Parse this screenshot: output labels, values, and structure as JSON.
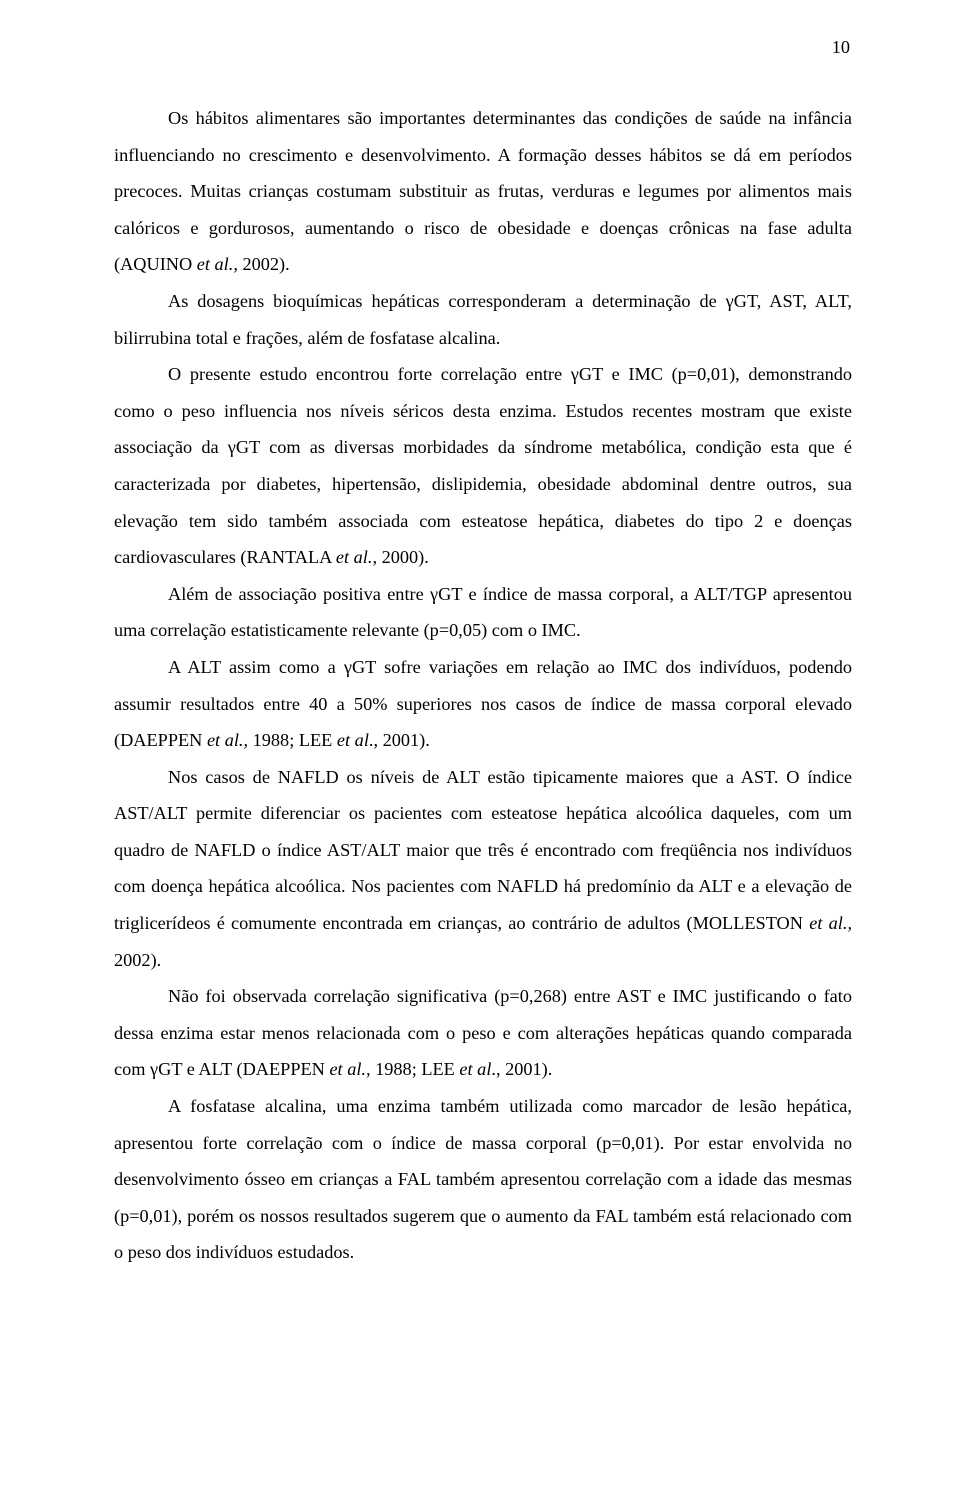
{
  "page_number": "10",
  "typography": {
    "font_family": "Times New Roman",
    "body_fontsize_pt": 14,
    "line_spacing": 2.0,
    "text_color": "#000000",
    "background_color": "#ffffff"
  },
  "paragraphs": [
    {
      "runs": [
        {
          "text": "Os hábitos alimentares são importantes determinantes das condições de saúde na infância influenciando no crescimento e desenvolvimento. A formação desses hábitos se dá em períodos precoces. Muitas crianças costumam substituir as frutas, verduras e legumes por alimentos mais calóricos e gordurosos, aumentando o risco de obesidade e doenças crônicas na fase adulta (AQUINO "
        },
        {
          "text": "et al.,",
          "italic": true
        },
        {
          "text": " 2002)."
        }
      ]
    },
    {
      "runs": [
        {
          "text": "As dosagens bioquímicas hepáticas corresponderam a determinação de γGT, AST, ALT, bilirrubina total e frações, além de fosfatase alcalina."
        }
      ]
    },
    {
      "runs": [
        {
          "text": "O presente estudo encontrou forte correlação entre γGT e IMC (p=0,01), demonstrando como o peso influencia nos níveis séricos desta enzima. Estudos recentes mostram que existe associação da γGT com as diversas morbidades da síndrome metabólica, condição esta que é caracterizada por diabetes, hipertensão, dislipidemia, obesidade abdominal dentre outros, sua elevação tem sido também associada com esteatose hepática, diabetes do tipo 2 e doenças cardiovasculares (RANTALA "
        },
        {
          "text": "et al.,",
          "italic": true
        },
        {
          "text": " 2000)."
        }
      ]
    },
    {
      "runs": [
        {
          "text": "Além de associação positiva entre γGT e índice de massa corporal, a ALT/TGP apresentou uma correlação estatisticamente relevante (p=0,05) com o IMC."
        }
      ]
    },
    {
      "runs": [
        {
          "text": "A ALT assim como a γGT sofre variações em relação ao IMC dos indivíduos, podendo assumir resultados entre 40 a 50% superiores nos casos de índice de massa corporal elevado (DAEPPEN "
        },
        {
          "text": "et al.,",
          "italic": true
        },
        {
          "text": " 1988; LEE "
        },
        {
          "text": "et al",
          "italic": true
        },
        {
          "text": "., 2001)."
        }
      ]
    },
    {
      "runs": [
        {
          "text": "Nos casos de NAFLD os níveis de ALT estão tipicamente maiores que a AST. O índice AST/ALT permite diferenciar os pacientes com esteatose hepática alcoólica daqueles, com um quadro de NAFLD o índice AST/ALT maior que três é encontrado com freqüência nos indivíduos com doença hepática alcoólica. Nos pacientes com NAFLD há predomínio da ALT e a elevação de triglicerídeos é comumente encontrada em crianças, ao contrário de adultos (MOLLESTON "
        },
        {
          "text": "et al.,",
          "italic": true
        },
        {
          "text": " 2002)."
        }
      ]
    },
    {
      "runs": [
        {
          "text": "Não foi observada correlação significativa (p=0,268) entre AST e IMC justificando o fato dessa enzima estar menos relacionada com o peso e com alterações hepáticas quando comparada com γGT e ALT (DAEPPEN "
        },
        {
          "text": "et al.,",
          "italic": true
        },
        {
          "text": " 1988; LEE "
        },
        {
          "text": "et al",
          "italic": true
        },
        {
          "text": "., 2001)."
        }
      ]
    },
    {
      "runs": [
        {
          "text": "A fosfatase alcalina, uma enzima também utilizada como marcador de lesão hepática, apresentou forte correlação com o índice de massa corporal (p=0,01). Por estar envolvida no desenvolvimento ósseo em crianças a FAL também apresentou correlação com a idade das mesmas (p=0,01), porém os nossos resultados sugerem que o aumento da FAL também está relacionado com o peso dos indivíduos estudados."
        }
      ]
    }
  ]
}
